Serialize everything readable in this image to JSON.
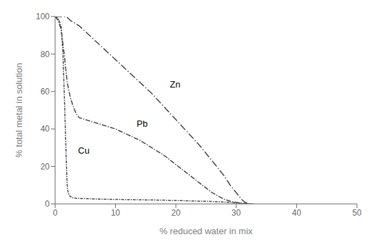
{
  "chart_data": {
    "type": "line",
    "xlabel": "% reduced water in mix",
    "ylabel": "% total metal in solution",
    "xlim": [
      0,
      50
    ],
    "ylim": [
      0,
      100
    ],
    "xticks": [
      0,
      10,
      20,
      30,
      40,
      50
    ],
    "yticks": [
      0,
      20,
      40,
      60,
      80,
      100
    ],
    "series": [
      {
        "name": "Zn",
        "color": "#444444",
        "line_style": "dashdot",
        "x": [
          0,
          0.1,
          1.0,
          1.8,
          2.0,
          2.5,
          3.0,
          4.0,
          5.0,
          6.0,
          8.0,
          10.0,
          12.0,
          14.0,
          16.0,
          18.0,
          20.0,
          22.0,
          24.0,
          26.0,
          28.0,
          29.0,
          30.0,
          31.0,
          31.5,
          32.0,
          32.3
        ],
        "values": [
          100,
          100,
          100,
          100,
          99.5,
          98,
          97,
          95,
          92,
          89,
          83,
          77,
          71,
          65,
          59,
          52,
          45,
          38,
          31,
          23,
          15,
          10,
          6,
          2,
          0.8,
          0.2,
          0
        ]
      },
      {
        "name": "Pb",
        "color": "#444444",
        "line_style": "dashdot",
        "x": [
          0,
          0.5,
          1.0,
          1.5,
          2.0,
          2.5,
          3.0,
          3.5,
          4.0,
          4.5,
          5.0,
          6.0,
          7.0,
          8.0,
          10.0,
          12.0,
          14.0,
          16.0,
          18.0,
          20.0,
          22.0,
          24.0,
          26.0,
          28.0,
          29.0,
          30.0,
          31.0,
          32.0,
          32.3
        ],
        "values": [
          100,
          98,
          93,
          80,
          65,
          57,
          52,
          48,
          46,
          45.5,
          45,
          44,
          43,
          42,
          40,
          37,
          34,
          30,
          26,
          21,
          16,
          11,
          6,
          2.5,
          1.5,
          0.8,
          0.3,
          0.05,
          0
        ]
      },
      {
        "name": "Cu",
        "color": "#444444",
        "line_style": "dashdot",
        "x": [
          0,
          0.5,
          1.0,
          1.3,
          1.6,
          1.9,
          2.0,
          2.1,
          2.3,
          2.5,
          2.8,
          3.0,
          3.5,
          4.0,
          5.0,
          6.0,
          7.0,
          8.0,
          10.0,
          12.0,
          14.0,
          16.0,
          18.0,
          20.0,
          25.0,
          28.0,
          30.0,
          31.0,
          32.0,
          33.0
        ],
        "values": [
          100,
          99,
          95,
          80,
          50,
          18,
          10,
          7,
          5,
          4,
          3.5,
          3.2,
          3.0,
          2.9,
          2.8,
          2.7,
          2.6,
          2.5,
          2.4,
          2.3,
          2.2,
          2.1,
          2.0,
          1.8,
          1.4,
          1.0,
          0.5,
          0.2,
          0.05,
          0
        ]
      }
    ],
    "annotations": [
      {
        "text": "Zn",
        "x": 19,
        "y": 62
      },
      {
        "text": "Pb",
        "x": 13.5,
        "y": 41
      },
      {
        "text": "Cu",
        "x": 3.8,
        "y": 27
      }
    ]
  }
}
